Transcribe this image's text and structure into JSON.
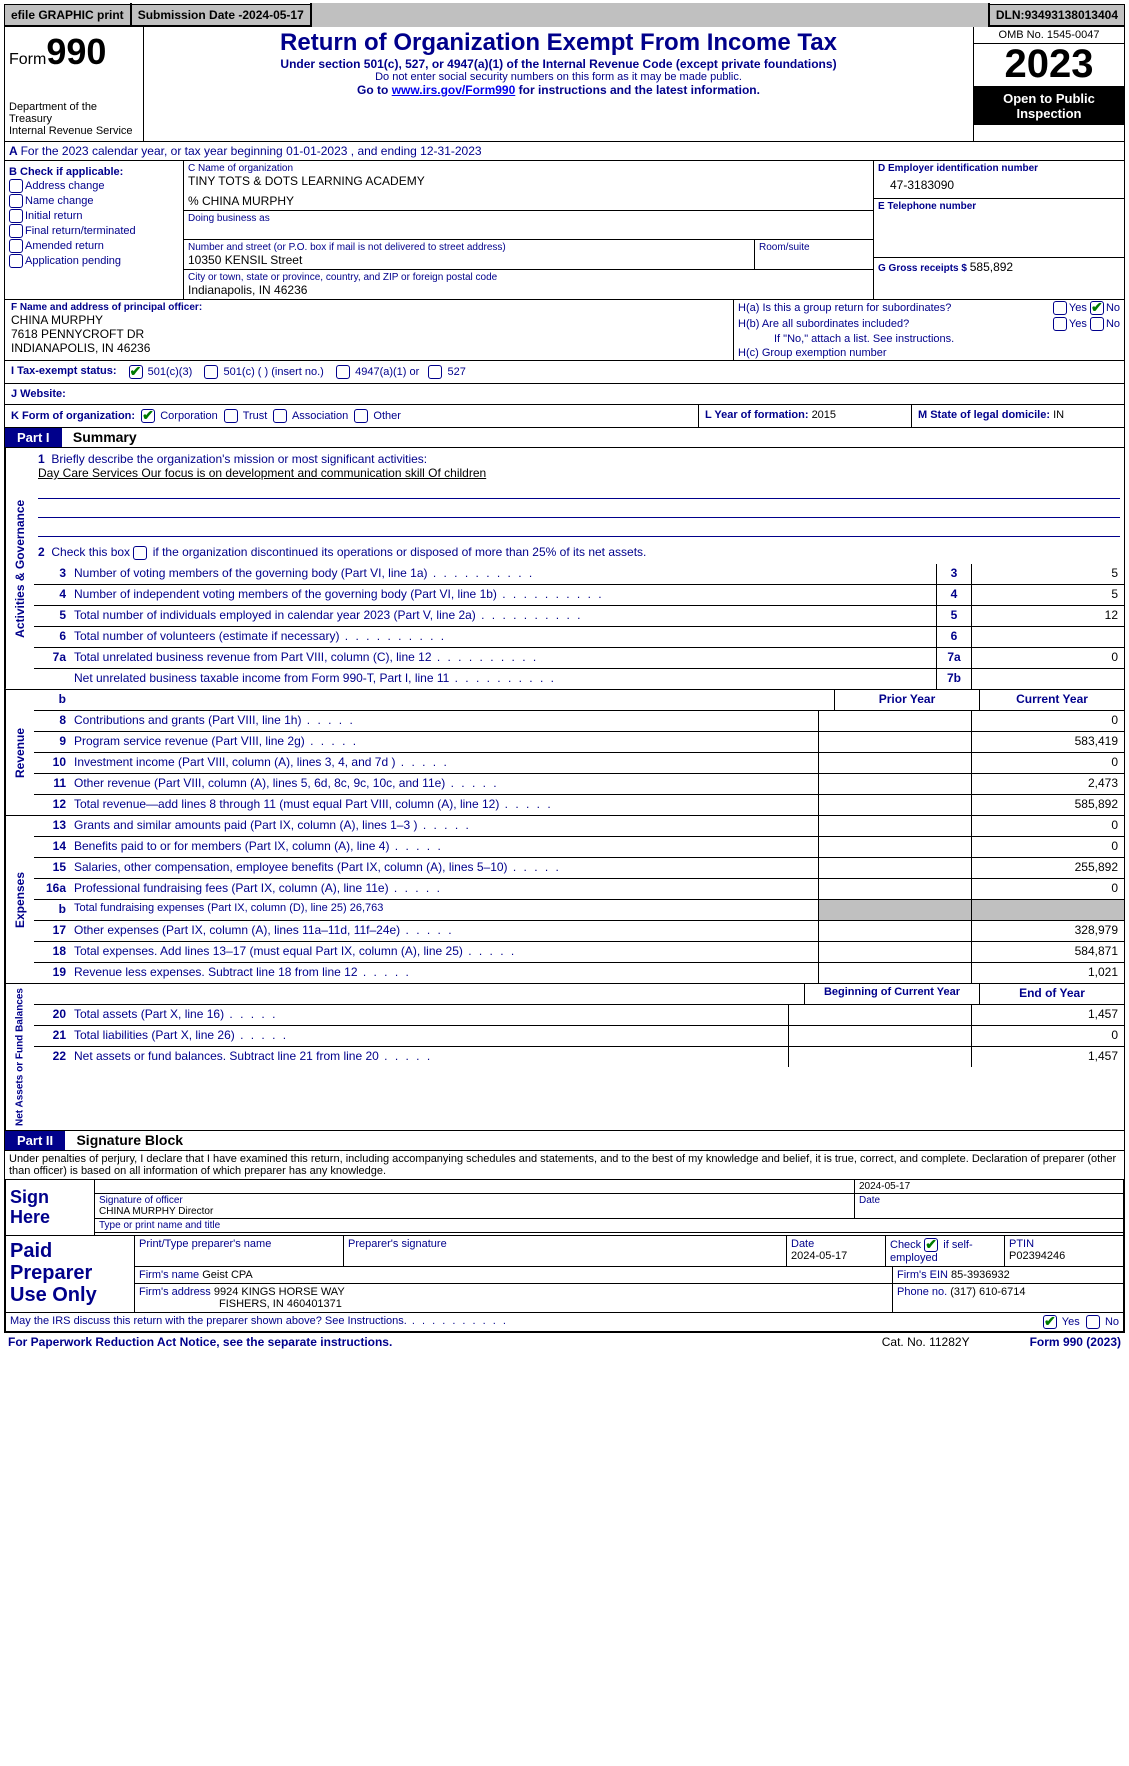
{
  "topbar": {
    "efile": "efile GRAPHIC print",
    "submission_label": "Submission Date - ",
    "submission_date": "2024-05-17",
    "dln_label": "DLN: ",
    "dln": "93493138013404"
  },
  "header": {
    "form_prefix": "Form",
    "form_number": "990",
    "dept": "Department of the Treasury",
    "irs": "Internal Revenue Service",
    "title": "Return of Organization Exempt From Income Tax",
    "subtitle": "Under section 501(c), 527, or 4947(a)(1) of the Internal Revenue Code (except private foundations)",
    "warn": "Do not enter social security numbers on this form as it may be made public.",
    "goto_prefix": "Go to ",
    "goto_link": "www.irs.gov/Form990",
    "goto_suffix": " for instructions and the latest information.",
    "omb": "OMB No. 1545-0047",
    "year": "2023",
    "inspect1": "Open to Public",
    "inspect2": "Inspection"
  },
  "a_line": "For the 2023 calendar year, or tax year beginning 01-01-2023   , and ending 12-31-2023",
  "b": {
    "label": "B Check if applicable:",
    "items": [
      "Address change",
      "Name change",
      "Initial return",
      "Final return/terminated",
      "Amended return",
      "Application pending"
    ]
  },
  "c": {
    "name_label": "C Name of organization",
    "name": "TINY TOTS & DOTS LEARNING ACADEMY",
    "care_of": "% CHINA MURPHY",
    "dba_label": "Doing business as",
    "addr_label": "Number and street (or P.O. box if mail is not delivered to street address)",
    "addr": "10350 KENSIL Street",
    "room_label": "Room/suite",
    "city_label": "City or town, state or province, country, and ZIP or foreign postal code",
    "city": "Indianapolis, IN  46236"
  },
  "d": {
    "label": "D Employer identification number",
    "value": "47-3183090"
  },
  "e": {
    "label": "E Telephone number",
    "value": ""
  },
  "g": {
    "label": "G Gross receipts $ ",
    "value": "585,892"
  },
  "f": {
    "label": "F  Name and address of principal officer:",
    "name": "CHINA MURPHY",
    "addr1": "7618 PENNYCROFT DR",
    "addr2": "INDIANAPOLIS, IN  46236"
  },
  "h": {
    "a_label": "H(a)  Is this a group return for subordinates?",
    "a_yes": false,
    "a_no": true,
    "b_label": "H(b)  Are all subordinates included?",
    "b_yes": false,
    "b_no": false,
    "note": "If \"No,\" attach a list. See instructions.",
    "c_label": "H(c)  Group exemption number ",
    "yes": "Yes",
    "no": "No"
  },
  "i": {
    "label": "I  Tax-exempt status:",
    "opts": [
      "501(c)(3)",
      "501(c) (  ) (insert no.)",
      "4947(a)(1) or",
      "527"
    ],
    "checked": 0
  },
  "j": {
    "label": "J  Website: ",
    "value": ""
  },
  "k": {
    "label": "K Form of organization:",
    "opts": [
      "Corporation",
      "Trust",
      "Association",
      "Other"
    ],
    "checked": 0
  },
  "l": {
    "label": "L Year of formation: ",
    "value": "2015"
  },
  "m": {
    "label": "M State of legal domicile: ",
    "value": "IN"
  },
  "part1": {
    "header": "Part I",
    "title": "Summary",
    "q1": "Briefly describe the organization's mission or most significant activities:",
    "mission": "Day Care Services Our focus is on development and communication skill Of children",
    "q2": "Check this box       if the organization discontinued its operations or disposed of more than 25% of its net assets."
  },
  "tabs": {
    "gov": "Activities & Governance",
    "rev": "Revenue",
    "exp": "Expenses",
    "net": "Net Assets or Fund Balances"
  },
  "gov_lines": [
    {
      "n": "3",
      "d": "Number of voting members of the governing body (Part VI, line 1a)",
      "box": "3",
      "v": "5"
    },
    {
      "n": "4",
      "d": "Number of independent voting members of the governing body (Part VI, line 1b)",
      "box": "4",
      "v": "5"
    },
    {
      "n": "5",
      "d": "Total number of individuals employed in calendar year 2023 (Part V, line 2a)",
      "box": "5",
      "v": "12"
    },
    {
      "n": "6",
      "d": "Total number of volunteers (estimate if necessary)",
      "box": "6",
      "v": ""
    },
    {
      "n": "7a",
      "d": "Total unrelated business revenue from Part VIII, column (C), line 12",
      "box": "7a",
      "v": "0"
    },
    {
      "n": "",
      "d": "Net unrelated business taxable income from Form 990-T, Part I, line 11",
      "box": "7b",
      "v": ""
    }
  ],
  "col_headers": {
    "b": "b",
    "prior": "Prior Year",
    "current": "Current Year",
    "boy": "Beginning of Current Year",
    "eoy": "End of Year"
  },
  "rev_lines": [
    {
      "n": "8",
      "d": "Contributions and grants (Part VIII, line 1h)",
      "p": "",
      "c": "0"
    },
    {
      "n": "9",
      "d": "Program service revenue (Part VIII, line 2g)",
      "p": "",
      "c": "583,419"
    },
    {
      "n": "10",
      "d": "Investment income (Part VIII, column (A), lines 3, 4, and 7d )",
      "p": "",
      "c": "0"
    },
    {
      "n": "11",
      "d": "Other revenue (Part VIII, column (A), lines 5, 6d, 8c, 9c, 10c, and 11e)",
      "p": "",
      "c": "2,473"
    },
    {
      "n": "12",
      "d": "Total revenue—add lines 8 through 11 (must equal Part VIII, column (A), line 12)",
      "p": "",
      "c": "585,892"
    }
  ],
  "exp_lines": [
    {
      "n": "13",
      "d": "Grants and similar amounts paid (Part IX, column (A), lines 1–3 )",
      "p": "",
      "c": "0"
    },
    {
      "n": "14",
      "d": "Benefits paid to or for members (Part IX, column (A), line 4)",
      "p": "",
      "c": "0"
    },
    {
      "n": "15",
      "d": "Salaries, other compensation, employee benefits (Part IX, column (A), lines 5–10)",
      "p": "",
      "c": "255,892"
    },
    {
      "n": "16a",
      "d": "Professional fundraising fees (Part IX, column (A), line 11e)",
      "p": "",
      "c": "0"
    },
    {
      "n": "b",
      "d": "Total fundraising expenses (Part IX, column (D), line 25) 26,763",
      "p": "grey",
      "c": "grey"
    },
    {
      "n": "17",
      "d": "Other expenses (Part IX, column (A), lines 11a–11d, 11f–24e)",
      "p": "",
      "c": "328,979"
    },
    {
      "n": "18",
      "d": "Total expenses. Add lines 13–17 (must equal Part IX, column (A), line 25)",
      "p": "",
      "c": "584,871"
    },
    {
      "n": "19",
      "d": "Revenue less expenses. Subtract line 18 from line 12",
      "p": "",
      "c": "1,021"
    }
  ],
  "net_lines": [
    {
      "n": "20",
      "d": "Total assets (Part X, line 16)",
      "p": "",
      "c": "1,457"
    },
    {
      "n": "21",
      "d": "Total liabilities (Part X, line 26)",
      "p": "",
      "c": "0"
    },
    {
      "n": "22",
      "d": "Net assets or fund balances. Subtract line 21 from line 20",
      "p": "",
      "c": "1,457"
    }
  ],
  "part2": {
    "header": "Part II",
    "title": "Signature Block",
    "decl": "Under penalties of perjury, I declare that I have examined this return, including accompanying schedules and statements, and to the best of my knowledge and belief, it is true, correct, and complete. Declaration of preparer (other than officer) is based on all information of which preparer has any knowledge."
  },
  "sign": {
    "label": "Sign Here",
    "date": "2024-05-17",
    "sig_label": "Signature of officer",
    "officer": "CHINA MURPHY  Director",
    "type_label": "Type or print name and title",
    "date_label": "Date"
  },
  "prep": {
    "label": "Paid Preparer Use Only",
    "h1": "Print/Type preparer's name",
    "h2": "Preparer's signature",
    "h3": "Date",
    "date": "2024-05-17",
    "h4_pre": "Check ",
    "h4_post": " if self-employed",
    "self_emp": true,
    "h5": "PTIN",
    "ptin": "P02394246",
    "firm_name_label": "Firm's name    ",
    "firm_name": "Geist CPA",
    "firm_ein_label": "Firm's EIN ",
    "firm_ein": "85-3936932",
    "firm_addr_label": "Firm's address ",
    "firm_addr1": "9924 KINGS HORSE WAY",
    "firm_addr2": "FISHERS, IN   460401371",
    "phone_label": "Phone no. ",
    "phone": "(317) 610-6714"
  },
  "discuss": {
    "text": "May the IRS discuss this return with the preparer shown above? See Instructions.",
    "yes": true,
    "no": false,
    "yes_label": "Yes",
    "no_label": "No"
  },
  "footer": {
    "paperwork": "For Paperwork Reduction Act Notice, see the separate instructions.",
    "cat": "Cat. No. 11282Y",
    "form": "Form 990 (2023)"
  },
  "colors": {
    "blue": "#00008b",
    "green_check": "#007a00",
    "grey": "#c0c0c0"
  }
}
